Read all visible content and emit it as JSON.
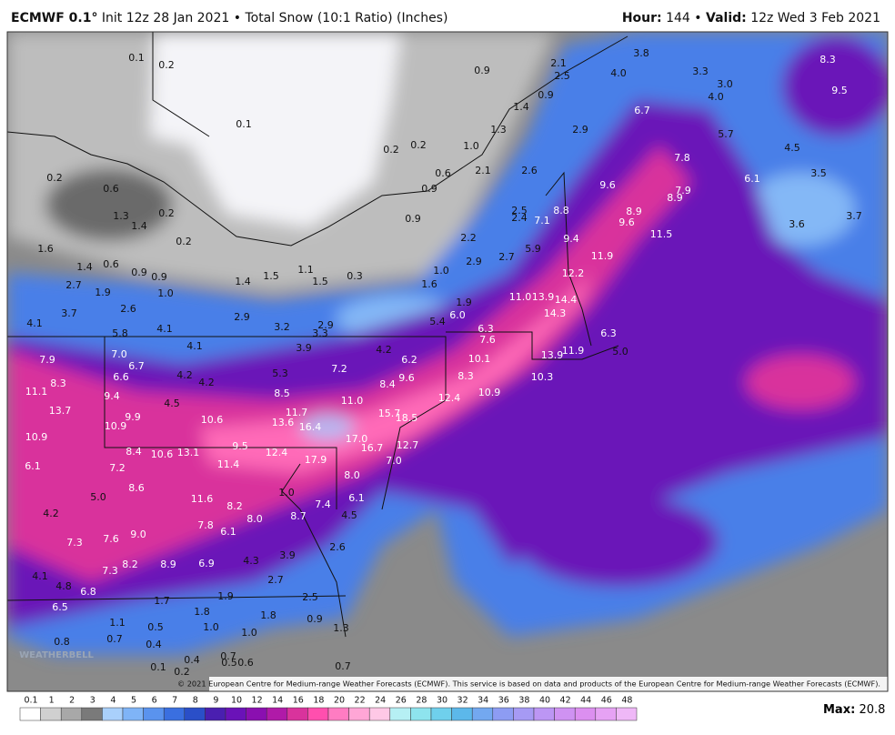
{
  "header": {
    "model": "ECMWF 0.1°",
    "init": "Init 12z 28 Jan 2021",
    "separator": "•",
    "product": "Total Snow (10:1 Ratio) (Inches)",
    "hour_label": "Hour:",
    "hour": "144",
    "valid_label": "Valid:",
    "valid": "12z Wed 3 Feb 2021"
  },
  "map_labels": [
    "0.1",
    "0.2",
    "0.9",
    "2.1",
    "2.5",
    "4.0",
    "3.8",
    "3.3",
    "3.0",
    "4.0",
    "8.3",
    "9.5",
    "0.9",
    "1.4",
    "6.7",
    "0.1",
    "1.3",
    "2.9",
    "5.7",
    "0.2",
    "0.2",
    "1.0",
    "4.5",
    "7.8",
    "0.2",
    "0.6",
    "2.1",
    "2.6",
    "6.1",
    "3.5",
    "0.6",
    "0.9",
    "9.6",
    "7.9",
    "8.9",
    "1.3",
    "1.4",
    "0.2",
    "0.9",
    "2.5",
    "2.4",
    "7.1",
    "8.8",
    "8.9",
    "9.6",
    "3.7",
    "3.6",
    "0.2",
    "2.2",
    "11.5",
    "9.4",
    "1.6",
    "5.9",
    "2.7",
    "11.9",
    "2.9",
    "1.4",
    "0.6",
    "0.9",
    "0.9",
    "1.4",
    "1.5",
    "1.1",
    "1.5",
    "0.3",
    "1.0",
    "12.2",
    "2.7",
    "1.9",
    "1.0",
    "1.6",
    "11.0",
    "13.9",
    "14.4",
    "2.6",
    "1.9",
    "3.7",
    "2.9",
    "14.3",
    "5.4",
    "6.0",
    "4.1",
    "5.8",
    "4.1",
    "3.2",
    "2.9",
    "3.3",
    "6.3",
    "6.3",
    "4.1",
    "3.9",
    "7.6",
    "4.2",
    "13.9",
    "11.9",
    "5.0",
    "7.9",
    "7.0",
    "6.7",
    "6.2",
    "10.1",
    "7.2",
    "6.6",
    "4.2",
    "4.2",
    "5.3",
    "8.3",
    "8.4",
    "9.6",
    "8.3",
    "10.3",
    "11.1",
    "9.4",
    "8.5",
    "10.9",
    "4.5",
    "11.0",
    "12.4",
    "13.7",
    "11.7",
    "15.7",
    "18.5",
    "9.9",
    "10.6",
    "13.6",
    "16.4",
    "10.9",
    "10.9",
    "17.0",
    "16.7",
    "12.7",
    "9.5",
    "8.4",
    "10.6",
    "13.1",
    "12.4",
    "17.9",
    "7.0",
    "6.1",
    "7.2",
    "11.4",
    "8.0",
    "8.6",
    "1.0",
    "5.0",
    "11.6",
    "8.2",
    "6.1",
    "7.4",
    "4.2",
    "8.0",
    "8.7",
    "4.5",
    "7.8",
    "9.0",
    "6.1",
    "7.3",
    "7.6",
    "2.6",
    "3.9",
    "8.2",
    "8.9",
    "6.9",
    "4.3",
    "7.3",
    "4.1",
    "2.7",
    "4.8",
    "6.8",
    "2.5",
    "1.7",
    "1.9",
    "6.5",
    "1.8",
    "1.8",
    "0.9",
    "1.1",
    "0.5",
    "1.0",
    "1.0",
    "1.3",
    "0.8",
    "0.7",
    "0.4",
    "0.4",
    "0.7",
    "0.5",
    "0.6",
    "0.7",
    "0.1",
    "0.2"
  ],
  "legend": {
    "labels": [
      "0.1",
      "1",
      "2",
      "3",
      "4",
      "5",
      "6",
      "7",
      "8",
      "9",
      "10",
      "12",
      "14",
      "16",
      "18",
      "20",
      "22",
      "24",
      "26",
      "28",
      "30",
      "32",
      "34",
      "36",
      "38",
      "40",
      "42",
      "44",
      "46",
      "48"
    ]
  },
  "footer": {
    "copyright": "© 2021 European Centre for Medium-range Weather Forecasts (ECMWF). This service is based on data and products of the European Centre for Medium-range Weather Forecasts (ECMWF).",
    "max_label": "Max:",
    "max": "20.8",
    "watermark": "WEATHERBELL"
  }
}
